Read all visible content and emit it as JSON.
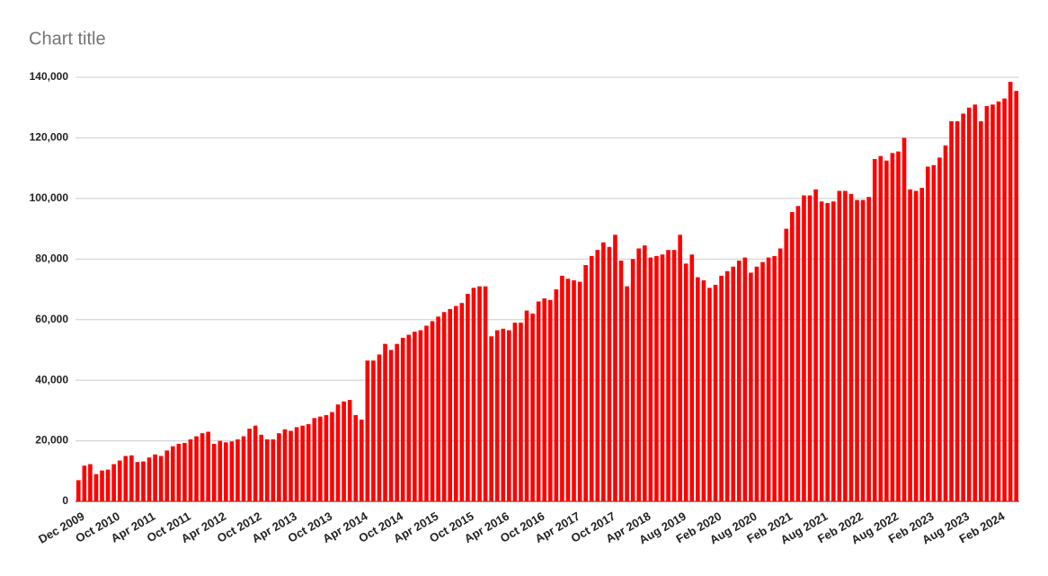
{
  "chart_data": {
    "type": "bar",
    "title": "Chart title",
    "categories": [
      "Dec 2009",
      null,
      null,
      null,
      null,
      null,
      "Oct 2010",
      null,
      null,
      null,
      null,
      null,
      "Apr 2011",
      null,
      null,
      null,
      null,
      null,
      "Oct 2011",
      null,
      null,
      null,
      null,
      null,
      "Apr 2012",
      null,
      null,
      null,
      null,
      null,
      "Oct 2012",
      null,
      null,
      null,
      null,
      null,
      "Apr 2013",
      null,
      null,
      null,
      null,
      null,
      "Oct 2013",
      null,
      null,
      null,
      null,
      null,
      "Apr 2014",
      null,
      null,
      null,
      null,
      null,
      "Oct 2014",
      null,
      null,
      null,
      null,
      null,
      "Apr 2015",
      null,
      null,
      null,
      null,
      null,
      "Oct 2015",
      null,
      null,
      null,
      null,
      null,
      "Apr 2016",
      null,
      null,
      null,
      null,
      null,
      "Oct 2016",
      null,
      null,
      null,
      null,
      null,
      "Apr 2017",
      null,
      null,
      null,
      null,
      null,
      "Oct 2017",
      null,
      null,
      null,
      null,
      null,
      "Apr 2018",
      null,
      null,
      null,
      null,
      null,
      "Aug 2019",
      null,
      null,
      null,
      null,
      null,
      "Feb 2020",
      null,
      null,
      null,
      null,
      null,
      "Aug 2020",
      null,
      null,
      null,
      null,
      null,
      "Feb 2021",
      null,
      null,
      null,
      null,
      null,
      "Aug 2021",
      null,
      null,
      null,
      null,
      null,
      "Feb 2022",
      null,
      null,
      null,
      null,
      null,
      "Aug 2022",
      null,
      null,
      null,
      null,
      null,
      "Feb 2023",
      null,
      null,
      null,
      null,
      null,
      "Aug 2023",
      null,
      null,
      null,
      null,
      null,
      "Feb 2024",
      null,
      null,
      null
    ],
    "values": [
      7000,
      11800,
      12300,
      9000,
      10200,
      10500,
      12300,
      13500,
      15000,
      15200,
      13000,
      13200,
      14500,
      15500,
      15000,
      16800,
      18200,
      19000,
      19300,
      20500,
      21500,
      22500,
      23000,
      19000,
      20000,
      19500,
      19800,
      20500,
      21500,
      24000,
      25000,
      22000,
      20500,
      20500,
      22500,
      23800,
      23300,
      24500,
      25000,
      25500,
      27500,
      28000,
      28500,
      29500,
      32000,
      33000,
      33500,
      28500,
      27000,
      46500,
      46500,
      48500,
      52000,
      50000,
      52000,
      54000,
      55000,
      56000,
      56500,
      58000,
      59500,
      61000,
      62500,
      63500,
      64500,
      65500,
      68500,
      70500,
      71000,
      71000,
      54500,
      56500,
      57000,
      56500,
      59000,
      59000,
      63000,
      62000,
      66000,
      67000,
      66500,
      70000,
      74500,
      73500,
      73000,
      72500,
      78000,
      81000,
      83000,
      85500,
      84000,
      88000,
      79500,
      71000,
      80000,
      83500,
      84500,
      80500,
      81000,
      81500,
      83000,
      83000,
      88000,
      78500,
      81500,
      74000,
      73000,
      70500,
      71500,
      74500,
      76000,
      77500,
      79500,
      80500,
      75500,
      77500,
      79000,
      80500,
      81000,
      83500,
      90000,
      95500,
      97500,
      101000,
      101000,
      103000,
      99000,
      98500,
      99000,
      102500,
      102500,
      101500,
      99500,
      99500,
      100500,
      113000,
      114000,
      112500,
      115000,
      115500,
      120000,
      103000,
      102500,
      103500,
      110500,
      111000,
      113500,
      117500,
      125500,
      125500,
      128000,
      130000,
      131000,
      125500,
      130500,
      131000,
      132000,
      133000,
      138500,
      135500
    ],
    "color": "#ff0000",
    "ylim": [
      0,
      140000
    ],
    "yticks": [
      0,
      {
        "value": 20000,
        "label": "20,000"
      },
      {
        "value": 40000,
        "label": "40,000"
      },
      {
        "value": 60000,
        "label": "60,000"
      },
      {
        "value": 80000,
        "label": "80,000"
      },
      {
        "value": 100000,
        "label": "100,000"
      },
      {
        "value": 120000,
        "label": "120,000"
      },
      {
        "value": 140000,
        "label": "140,000"
      }
    ],
    "grid": true
  }
}
